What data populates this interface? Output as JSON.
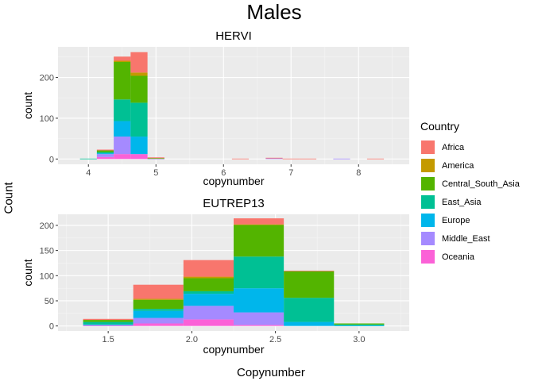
{
  "figure": {
    "title": "Males",
    "outer_xlabel": "Copynumber",
    "outer_ylabel": "Count"
  },
  "legend": {
    "title": "Country",
    "items": [
      {
        "name": "Africa",
        "color": "#F8766D"
      },
      {
        "name": "America",
        "color": "#C49A00"
      },
      {
        "name": "Central_South_Asia",
        "color": "#53B400"
      },
      {
        "name": "East_Asia",
        "color": "#00C094"
      },
      {
        "name": "Europe",
        "color": "#00B6EB"
      },
      {
        "name": "Middle_East",
        "color": "#A58AFF"
      },
      {
        "name": "Oceania",
        "color": "#FB61D7"
      }
    ]
  },
  "chart_data": [
    {
      "type": "bar",
      "stacked": true,
      "title": "HERVI",
      "xlabel": "copynumber",
      "ylabel": "count",
      "xlim": [
        3.55,
        8.75
      ],
      "ylim": [
        -13,
        275
      ],
      "xticks": [
        4,
        5,
        6,
        7,
        8
      ],
      "yticks": [
        0,
        100,
        200
      ],
      "bin_width": 0.25,
      "bin_centers": [
        3.75,
        4.0,
        4.25,
        4.5,
        4.75,
        5.0,
        5.25,
        5.5,
        5.75,
        6.0,
        6.25,
        6.5,
        6.75,
        7.0,
        7.25,
        7.5,
        7.75,
        8.0,
        8.25,
        8.5
      ],
      "series": [
        {
          "name": "Oceania",
          "values": [
            0,
            0,
            5,
            12,
            12,
            0,
            0,
            0,
            0,
            0,
            0,
            0,
            0,
            0,
            0,
            0,
            0,
            0,
            0,
            0
          ]
        },
        {
          "name": "Middle_East",
          "values": [
            0,
            0,
            7,
            43,
            0,
            1,
            0,
            0,
            0,
            0,
            0,
            0,
            2,
            0,
            0,
            0,
            1,
            0,
            0,
            0
          ]
        },
        {
          "name": "Europe",
          "values": [
            0,
            0,
            2,
            38,
            43,
            0,
            0,
            0,
            0,
            0,
            0,
            0,
            0,
            0,
            0,
            0,
            0,
            0,
            0,
            0
          ]
        },
        {
          "name": "East_Asia",
          "values": [
            0,
            1,
            3,
            53,
            83,
            0,
            0,
            0,
            0,
            0,
            0,
            0,
            0,
            0,
            0,
            0,
            0,
            0,
            0,
            0
          ]
        },
        {
          "name": "Central_South_Asia",
          "values": [
            0,
            0,
            4,
            92,
            66,
            1,
            0,
            0,
            0,
            0,
            0,
            0,
            0,
            0,
            0,
            0,
            0,
            0,
            0,
            0
          ]
        },
        {
          "name": "America",
          "values": [
            0,
            0,
            0,
            3,
            8,
            0,
            0,
            0,
            0,
            0,
            0,
            0,
            0,
            0,
            0,
            0,
            0,
            0,
            0,
            0
          ]
        },
        {
          "name": "Africa",
          "values": [
            0,
            0,
            2,
            10,
            50,
            2,
            0,
            0,
            0,
            0,
            1,
            0,
            1,
            1,
            1,
            0,
            0,
            0,
            1,
            0
          ]
        }
      ]
    },
    {
      "type": "bar",
      "stacked": true,
      "title": "EUTREP13",
      "xlabel": "copynumber",
      "ylabel": "count",
      "xlim": [
        1.2,
        3.3
      ],
      "ylim": [
        -10,
        222
      ],
      "xticks": [
        1.5,
        2.0,
        2.5,
        3.0
      ],
      "xticklabels": [
        "1.5",
        "2.0",
        "2.5",
        "3.0"
      ],
      "yticks": [
        0,
        50,
        100,
        150,
        200
      ],
      "bin_width": 0.3,
      "bin_centers": [
        1.5,
        1.8,
        2.1,
        2.4,
        2.7,
        3.0
      ],
      "series": [
        {
          "name": "Oceania",
          "values": [
            1,
            5,
            13,
            2,
            0,
            0
          ]
        },
        {
          "name": "Middle_East",
          "values": [
            1,
            11,
            27,
            25,
            0,
            0
          ]
        },
        {
          "name": "Europe",
          "values": [
            1,
            14,
            24,
            48,
            8,
            1
          ]
        },
        {
          "name": "East_Asia",
          "values": [
            5,
            4,
            5,
            63,
            48,
            2
          ]
        },
        {
          "name": "Central_South_Asia",
          "values": [
            4,
            18,
            26,
            63,
            53,
            2
          ]
        },
        {
          "name": "America",
          "values": [
            0,
            2,
            3,
            1,
            0,
            0
          ]
        },
        {
          "name": "Africa",
          "values": [
            2,
            28,
            33,
            12,
            1,
            0
          ]
        }
      ]
    }
  ]
}
